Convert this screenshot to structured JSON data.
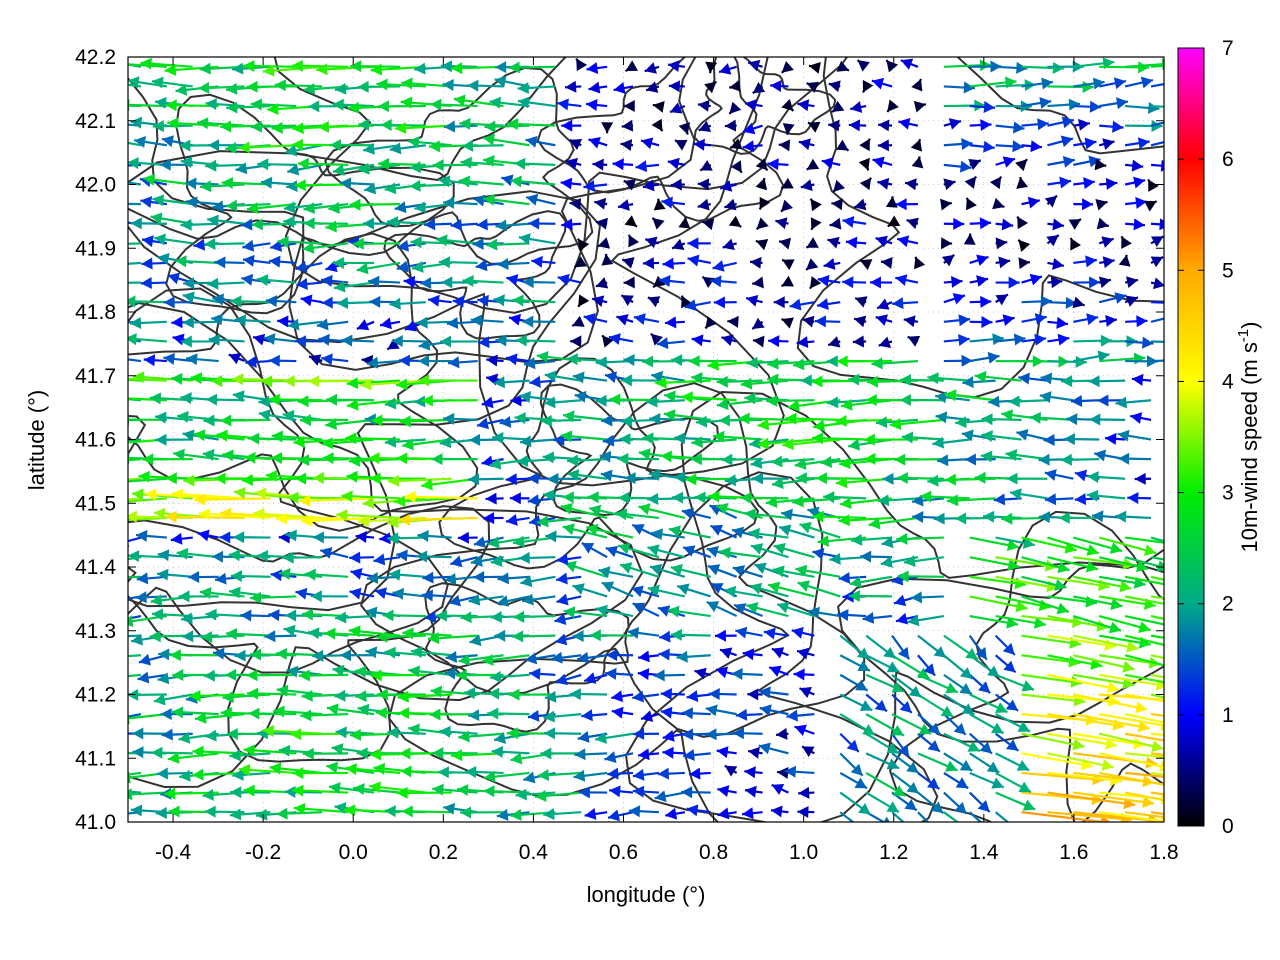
{
  "chart_data": {
    "type": "vector-field",
    "xlabel": "longitude (°)",
    "ylabel": "latitude (°)",
    "xlim": [
      -0.5,
      1.8
    ],
    "ylim": [
      41.0,
      42.2
    ],
    "xticks": [
      "-0.4",
      "-0.2",
      "0.0",
      "0.2",
      "0.4",
      "0.6",
      "0.8",
      "1.0",
      "1.2",
      "1.4",
      "1.6",
      "1.8"
    ],
    "xtick_values": [
      -0.4,
      -0.2,
      0.0,
      0.2,
      0.4,
      0.6,
      0.8,
      1.0,
      1.2,
      1.4,
      1.6,
      1.8
    ],
    "yticks": [
      "41.0",
      "41.1",
      "41.2",
      "41.3",
      "41.4",
      "41.5",
      "41.6",
      "41.7",
      "41.8",
      "41.9",
      "42.0",
      "42.1",
      "42.2"
    ],
    "ytick_values": [
      41.0,
      41.1,
      41.2,
      41.3,
      41.4,
      41.5,
      41.6,
      41.7,
      41.8,
      41.9,
      42.0,
      42.1,
      42.2
    ],
    "grid": true,
    "colorbar": {
      "label_main": "10m-wind speed (m s",
      "label_sup": "-1",
      "label_close": ")",
      "range": [
        0,
        7
      ],
      "ticks": [
        "0",
        "1",
        "2",
        "3",
        "4",
        "5",
        "6",
        "7"
      ],
      "tick_values": [
        0,
        1,
        2,
        3,
        4,
        5,
        6,
        7
      ],
      "palette": [
        "#000000",
        "#0000ff",
        "#00aa88",
        "#00ee00",
        "#ffff00",
        "#ffaa00",
        "#ff0000",
        "#ff00ff"
      ]
    },
    "contour_color": "#333333"
  }
}
